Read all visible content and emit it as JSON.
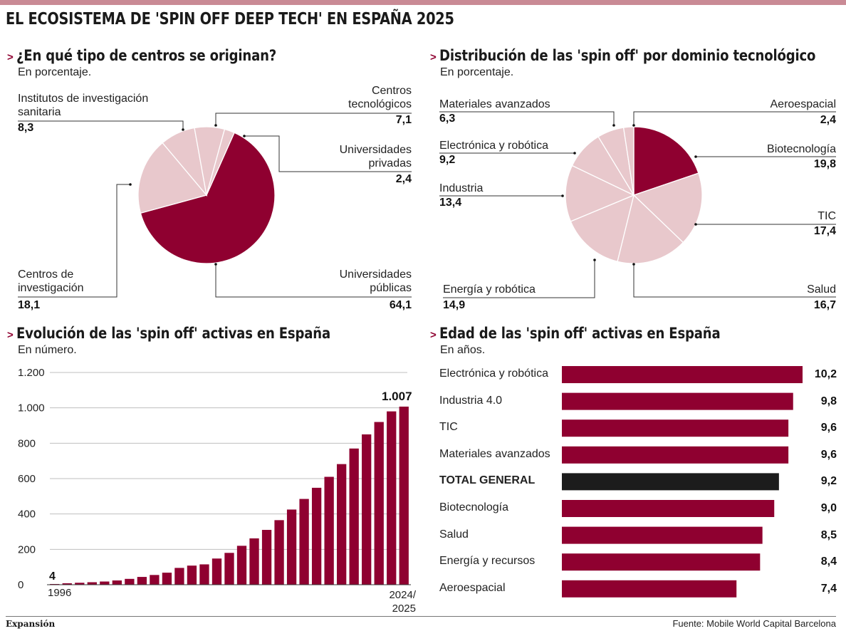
{
  "title": "EL ECOSISTEMA DE 'SPIN OFF DEEP TECH' EN ESPAÑA 2025",
  "colors": {
    "accent": "#8f0030",
    "light": "#e8c8cc",
    "dark": "#1c1c1c",
    "bar": "#8f0030"
  },
  "footer": {
    "brand": "Expansión",
    "source": "Fuente: Mobile World Capital Barcelona"
  },
  "chart_data": [
    {
      "type": "pie",
      "title": "¿En qué tipo de centros se originan?",
      "subtitle": "En porcentaje.",
      "slices": [
        {
          "name": "Universidades públicas",
          "label_lines": [
            "Universidades",
            "públicas"
          ],
          "value": 64.1,
          "value_label": "64,1",
          "color": "accent"
        },
        {
          "name": "Centros de investigación",
          "label_lines": [
            "Centros de",
            "investigación"
          ],
          "value": 18.1,
          "value_label": "18,1",
          "color": "light"
        },
        {
          "name": "Institutos de investigación sanitaria",
          "label_lines": [
            "Institutos de investigación",
            "sanitaria"
          ],
          "value": 8.3,
          "value_label": "8,3",
          "color": "light"
        },
        {
          "name": "Centros tecnológicos",
          "label_lines": [
            "Centros",
            "tecnológicos"
          ],
          "value": 7.1,
          "value_label": "7,1",
          "color": "light"
        },
        {
          "name": "Universidades privadas",
          "label_lines": [
            "Universidades",
            "privadas"
          ],
          "value": 2.4,
          "value_label": "2,4",
          "color": "light"
        }
      ]
    },
    {
      "type": "pie",
      "title": "Distribución de las 'spin off' por dominio tecnológico",
      "subtitle": "En porcentaje.",
      "slices": [
        {
          "name": "Biotecnología",
          "label_lines": [
            "Biotecnología"
          ],
          "value": 19.8,
          "value_label": "19,8",
          "color": "accent"
        },
        {
          "name": "TIC",
          "label_lines": [
            "TIC"
          ],
          "value": 17.4,
          "value_label": "17,4",
          "color": "light"
        },
        {
          "name": "Salud",
          "label_lines": [
            "Salud"
          ],
          "value": 16.7,
          "value_label": "16,7",
          "color": "light"
        },
        {
          "name": "Energía y robótica",
          "label_lines": [
            "Energía y robótica"
          ],
          "value": 14.9,
          "value_label": "14,9",
          "color": "light"
        },
        {
          "name": "Industria",
          "label_lines": [
            "Industria"
          ],
          "value": 13.4,
          "value_label": "13,4",
          "color": "light"
        },
        {
          "name": "Electrónica y robótica",
          "label_lines": [
            "Electrónica y robótica"
          ],
          "value": 9.2,
          "value_label": "9,2",
          "color": "light"
        },
        {
          "name": "Materiales avanzados",
          "label_lines": [
            "Materiales avanzados"
          ],
          "value": 6.3,
          "value_label": "6,3",
          "color": "light"
        },
        {
          "name": "Aeroespacial",
          "label_lines": [
            "Aeroespacial"
          ],
          "value": 2.4,
          "value_label": "2,4",
          "color": "light"
        }
      ]
    },
    {
      "type": "bar",
      "title": "Evolución de las 'spin off' activas en España",
      "subtitle": "En número.",
      "categories": [
        "1996",
        "1997",
        "1998",
        "1999",
        "2000",
        "2001",
        "2002",
        "2003",
        "2004",
        "2005",
        "2006",
        "2007",
        "2008",
        "2009",
        "2010",
        "2011",
        "2012",
        "2013",
        "2014",
        "2015",
        "2016",
        "2017",
        "2018",
        "2019",
        "2020",
        "2021",
        "2022",
        "2023",
        "2024/2025"
      ],
      "values": [
        4,
        8,
        11,
        14,
        18,
        24,
        33,
        44,
        55,
        68,
        95,
        108,
        115,
        148,
        180,
        220,
        262,
        310,
        365,
        425,
        485,
        548,
        610,
        682,
        770,
        850,
        920,
        980,
        1007
      ],
      "ylim": [
        0,
        1200
      ],
      "yticks": [
        0,
        200,
        400,
        600,
        800,
        1000,
        1200
      ],
      "ytick_labels": [
        "0",
        "200",
        "400",
        "600",
        "800",
        "1.000",
        "1.200"
      ],
      "x_first_label": "1996",
      "x_last_label_lines": [
        "2024/",
        "2025"
      ],
      "first_value_label": "4",
      "last_value_label": "1.007",
      "grid": true
    },
    {
      "type": "bar",
      "orientation": "horizontal",
      "title": "Edad de las 'spin off' activas en España",
      "subtitle": "En años.",
      "xlim": [
        0,
        10.2
      ],
      "items": [
        {
          "category": "Electrónica y robótica",
          "value": 10.2,
          "value_label": "10,2",
          "highlight": false
        },
        {
          "category": "Industria 4.0",
          "value": 9.8,
          "value_label": "9,8",
          "highlight": false
        },
        {
          "category": "TIC",
          "value": 9.6,
          "value_label": "9,6",
          "highlight": false
        },
        {
          "category": "Materiales avanzados",
          "value": 9.6,
          "value_label": "9,6",
          "highlight": false
        },
        {
          "category": "TOTAL GENERAL",
          "value": 9.2,
          "value_label": "9,2",
          "highlight": true
        },
        {
          "category": "Biotecnología",
          "value": 9.0,
          "value_label": "9,0",
          "highlight": false
        },
        {
          "category": "Salud",
          "value": 8.5,
          "value_label": "8,5",
          "highlight": false
        },
        {
          "category": "Energía y recursos",
          "value": 8.4,
          "value_label": "8,4",
          "highlight": false
        },
        {
          "category": "Aeroespacial",
          "value": 7.4,
          "value_label": "7,4",
          "highlight": false
        }
      ]
    }
  ]
}
